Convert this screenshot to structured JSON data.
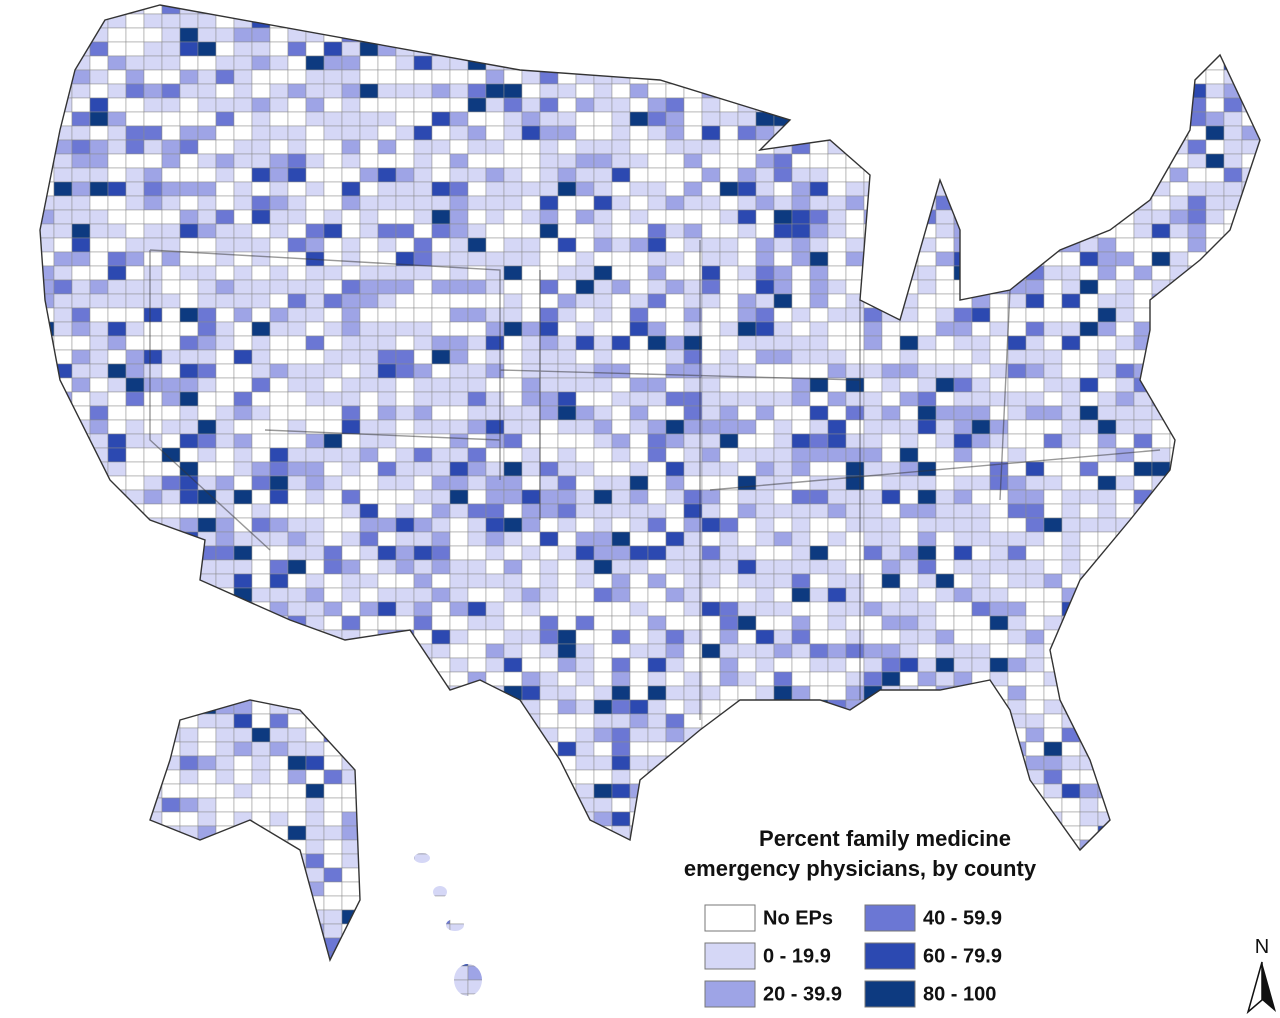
{
  "legend": {
    "title": [
      "Percent family medicine",
      "emergency physicians, by county"
    ],
    "entries": [
      {
        "label": "No EPs",
        "color": "#ffffff"
      },
      {
        "label": "0 - 19.9",
        "color": "#d5d7f6"
      },
      {
        "label": "20 - 39.9",
        "color": "#9ea4e6"
      },
      {
        "label": "40 - 59.9",
        "color": "#6b77d4"
      },
      {
        "label": "60 - 79.9",
        "color": "#2c49b1"
      },
      {
        "label": "80 - 100",
        "color": "#0d3a80"
      }
    ]
  },
  "north_arrow": "N"
}
